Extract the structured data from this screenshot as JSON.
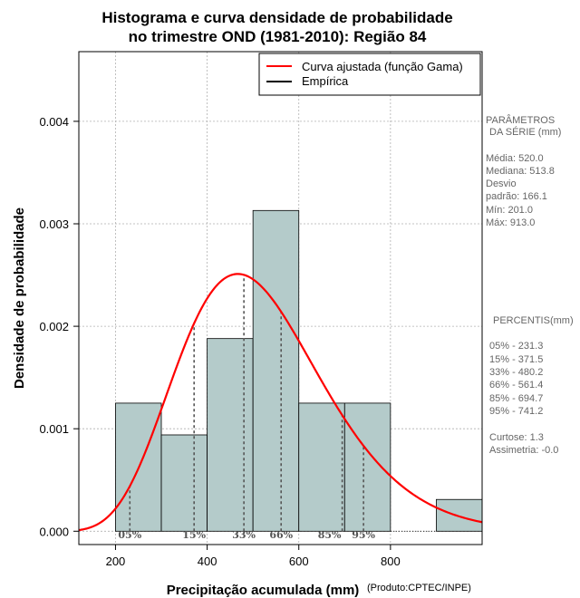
{
  "chart_data": {
    "type": "bar",
    "title_line1": "Histograma e curva densidade de probabilidade",
    "title_line2": "no trimestre OND (1981-2010): Região 84",
    "xlabel": "Precipitação acumulada (mm)",
    "ylabel": "Densidade de probabilidade",
    "credit": "(Produto:CPTEC/INPE)",
    "xlim": [
      120,
      1000
    ],
    "ylim": [
      -0.00013,
      0.00468
    ],
    "x_ticks": [
      200,
      400,
      600,
      800
    ],
    "x_tick_labels": [
      "200",
      "400",
      "600",
      "800"
    ],
    "y_ticks": [
      0.0,
      0.001,
      0.002,
      0.003,
      0.004
    ],
    "y_tick_labels": [
      "0.000",
      "0.001",
      "0.002",
      "0.003",
      "0.004"
    ],
    "grid": true,
    "bars": [
      {
        "x0": 200,
        "x1": 300,
        "density": 0.00125
      },
      {
        "x0": 300,
        "x1": 400,
        "density": 0.00094
      },
      {
        "x0": 400,
        "x1": 500,
        "density": 0.00188
      },
      {
        "x0": 500,
        "x1": 600,
        "density": 0.00313
      },
      {
        "x0": 600,
        "x1": 700,
        "density": 0.00125
      },
      {
        "x0": 700,
        "x1": 800,
        "density": 0.00125
      },
      {
        "x0": 800,
        "x1": 900,
        "density": 0.0
      },
      {
        "x0": 900,
        "x1": 1000,
        "density": 0.00031
      }
    ],
    "gamma_fit": {
      "mean": 520.0,
      "sd": 166.1
    },
    "percentiles": [
      {
        "label": "05%",
        "value": 231.3
      },
      {
        "label": "15%",
        "value": 371.5
      },
      {
        "label": "33%",
        "value": 480.2
      },
      {
        "label": "66%",
        "value": 561.4
      },
      {
        "label": "85%",
        "value": 694.7
      },
      {
        "label": "95%",
        "value": 741.2
      }
    ],
    "legend": {
      "position": "top-right",
      "entries": [
        {
          "label": "Curva ajustada (função Gama)",
          "color": "#ff0000"
        },
        {
          "label": "Empírica",
          "color": "#000000"
        }
      ]
    },
    "colors": {
      "bar_fill": "#b4cbca",
      "curve": "#ff0000",
      "percentile_line": "#555555",
      "grid": "#b0b0b0"
    }
  },
  "side_panel": {
    "params_header_1": "PARÂMETROS",
    "params_header_2": "DA SÉRIE (mm)",
    "media": "Média:  520.0",
    "mediana": "Mediana:  513.8",
    "desvio": "Desvio",
    "padrao": "padrão:  166.1",
    "min": "Mín:  201.0",
    "max": "Máx:  913.0",
    "percentis_header": "PERCENTIS(mm)",
    "p05": "05% -   231.3",
    "p15": "15% -   371.5",
    "p33": "33% -   480.2",
    "p66": "66% -   561.4",
    "p85": "85% -   694.7",
    "p95": "95% -   741.2",
    "curtose": "Curtose:   1.3",
    "assimetria": "Assimetria:  -0.0"
  }
}
